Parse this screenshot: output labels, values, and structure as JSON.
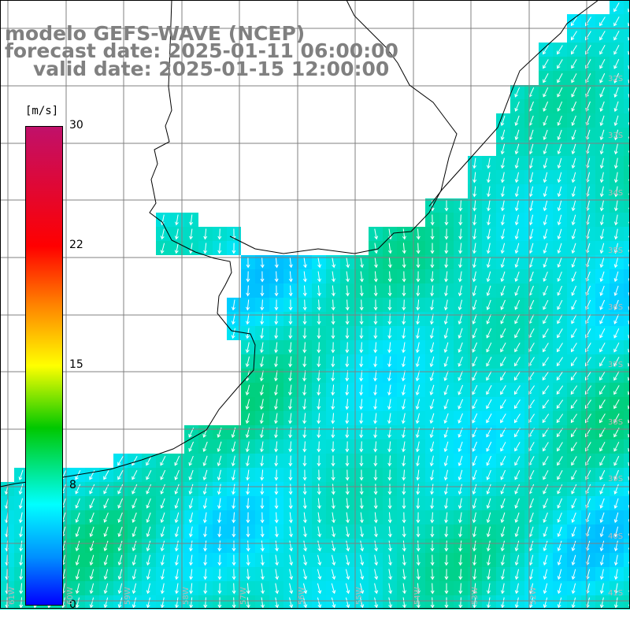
{
  "title": {
    "line1": "modelo GEFS-WAVE (NCEP)",
    "line2": "forecast date: 2025-01-11 06:00:00",
    "line3": "valid date: 2025-01-15 12:00:00"
  },
  "colorbar": {
    "units": "[m/s]",
    "ticks": [
      "30",
      "22",
      "15",
      "8",
      "0"
    ],
    "tick_values": [
      30,
      22,
      15,
      8,
      0
    ],
    "colors": [
      "#c0106a",
      "#ff0000",
      "#ff8000",
      "#ffff00",
      "#00c800",
      "#00ffff",
      "#0090ff",
      "#0000ff"
    ]
  },
  "lat_labels": [
    "32S",
    "33S",
    "34S",
    "35S",
    "36S",
    "37S",
    "38S",
    "39S",
    "40S",
    "41S"
  ],
  "lon_labels": [
    "61W",
    "60W",
    "59W",
    "58W",
    "57W",
    "56W",
    "55W",
    "54W",
    "53W",
    "52W"
  ],
  "field": {
    "parameter": "wind speed",
    "units": "m/s",
    "land_color": "#ffffff",
    "coast_color": "#000000",
    "grid_color": "#808080",
    "arrow_color": "#ffffff",
    "dominant_range": [
      6,
      10
    ]
  }
}
